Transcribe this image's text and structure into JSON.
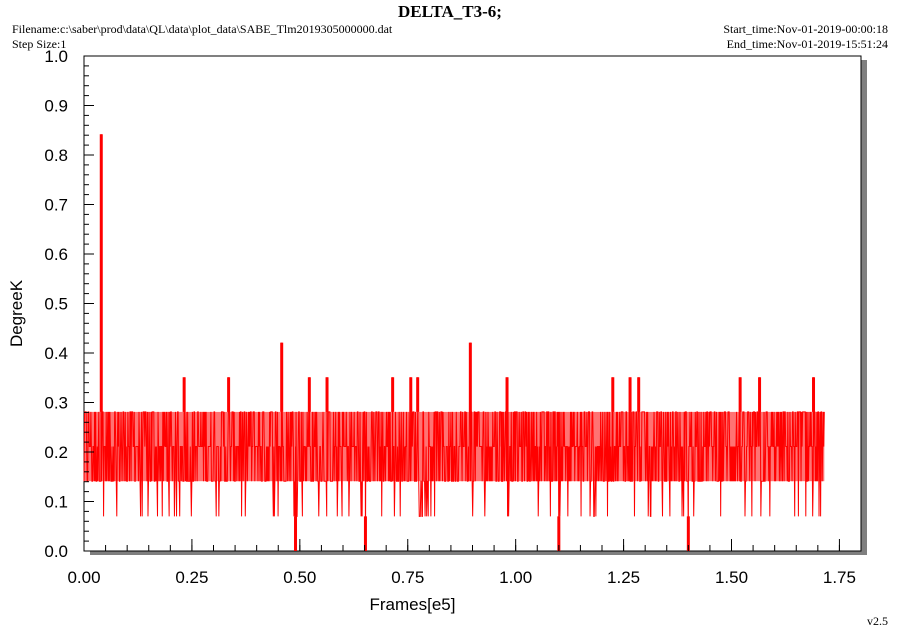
{
  "header": {
    "title": "DELTA_T3-6;",
    "filename": "Filename:c:\\saber\\prod\\data\\QL\\data\\plot_data\\SABE_Tlm2019305000000.dat",
    "step_size": "Step Size:1",
    "start_time": "Start_time:Nov-01-2019-00:00:18",
    "end_time": "End_time:Nov-01-2019-15:51:24",
    "version": "v2.5"
  },
  "colors": {
    "series": "#ff0000",
    "shadow": "#7f7f7f",
    "axis": "#000000",
    "background": "#ffffff"
  },
  "chart_data": {
    "type": "line",
    "title": "DELTA_T3-6;",
    "xlabel": "Frames[e5]",
    "ylabel": "DegreeK",
    "xlim": [
      0,
      1.8
    ],
    "ylim": [
      0,
      1.0
    ],
    "x_ticks": [
      "0.00",
      "0.25",
      "0.50",
      "0.75",
      "1.00",
      "1.25",
      "1.50",
      "1.75"
    ],
    "x_tick_values": [
      0,
      0.25,
      0.5,
      0.75,
      1.0,
      1.25,
      1.5,
      1.75
    ],
    "y_ticks": [
      "0.0",
      "0.1",
      "0.2",
      "0.3",
      "0.4",
      "0.5",
      "0.6",
      "0.7",
      "0.8",
      "0.9",
      "1.0"
    ],
    "y_tick_values": [
      0,
      0.1,
      0.2,
      0.3,
      0.4,
      0.5,
      0.6,
      0.7,
      0.8,
      0.9,
      1.0
    ],
    "grid": false,
    "series": [
      {
        "x_range": [
          0,
          1.715
        ],
        "band_low": 0.141,
        "band_mid": 0.211,
        "band_high": 0.281,
        "band_low_end": 0.07,
        "spikes": [
          {
            "x": 0.04,
            "y": 0.842
          },
          {
            "x": 0.232,
            "y": 0.351
          },
          {
            "x": 0.335,
            "y": 0.351
          },
          {
            "x": 0.458,
            "y": 0.421
          },
          {
            "x": 0.522,
            "y": 0.351
          },
          {
            "x": 0.563,
            "y": 0.351
          },
          {
            "x": 0.715,
            "y": 0.351
          },
          {
            "x": 0.757,
            "y": 0.351
          },
          {
            "x": 0.773,
            "y": 0.351
          },
          {
            "x": 0.895,
            "y": 0.421
          },
          {
            "x": 0.98,
            "y": 0.351
          },
          {
            "x": 1.225,
            "y": 0.351
          },
          {
            "x": 1.265,
            "y": 0.351
          },
          {
            "x": 1.285,
            "y": 0.351
          },
          {
            "x": 1.52,
            "y": 0.351
          },
          {
            "x": 1.565,
            "y": 0.351
          },
          {
            "x": 1.69,
            "y": 0.351
          }
        ],
        "dips": [
          {
            "x": 0.49,
            "y": 0.0
          },
          {
            "x": 0.652,
            "y": 0.0
          },
          {
            "x": 1.1,
            "y": 0.0
          },
          {
            "x": 1.4,
            "y": 0.0
          }
        ]
      }
    ]
  }
}
